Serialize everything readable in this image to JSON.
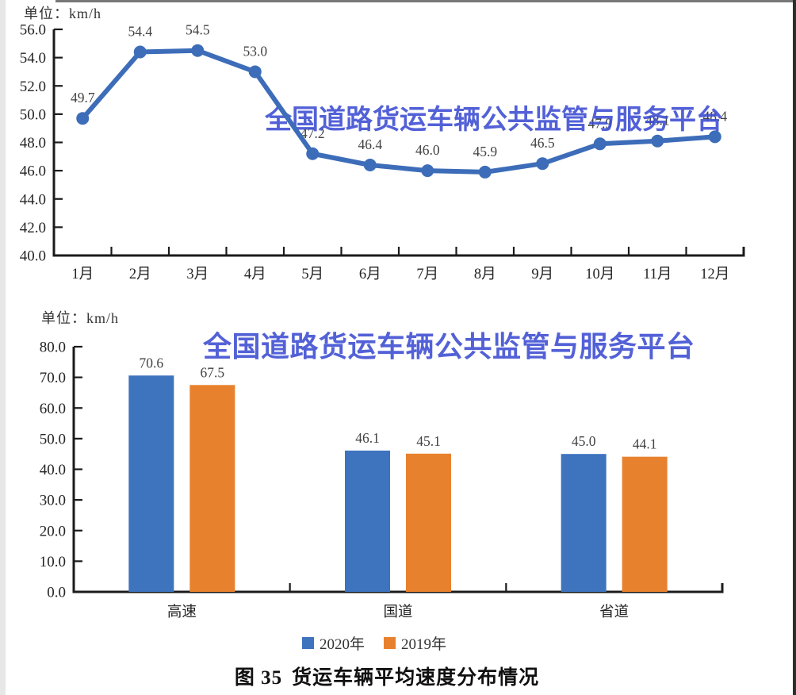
{
  "page": {
    "watermark": "全国道路货运车辆公共监管与服务平台",
    "caption_prefix": "图 35",
    "caption_title": "货运车辆平均速度分布情况"
  },
  "colors": {
    "axis": "#1b1b1b",
    "watermark_blue": "#3c4cd2",
    "line_blue": "#3d6db9",
    "bar_blue": "#3e73be",
    "bar_orange": "#e8812d"
  },
  "chart_data": [
    {
      "type": "line",
      "unit_label": "单位：km/h",
      "categories": [
        "1月",
        "2月",
        "3月",
        "4月",
        "5月",
        "6月",
        "7月",
        "8月",
        "9月",
        "10月",
        "11月",
        "12月"
      ],
      "series": [
        {
          "color": "#3d6db9",
          "values": [
            49.7,
            54.4,
            54.5,
            53.0,
            47.2,
            46.4,
            46.0,
            45.9,
            46.5,
            47.9,
            48.1,
            48.4
          ]
        }
      ],
      "ylim": [
        40.0,
        56.0
      ],
      "ytick_step": 2.0,
      "grid": false,
      "legend": "none",
      "data_labels": true
    },
    {
      "type": "bar",
      "unit_label": "单位：km/h",
      "categories": [
        "高速",
        "国道",
        "省道"
      ],
      "series": [
        {
          "name": "2020年",
          "color": "#3e73be",
          "values": [
            70.6,
            46.1,
            45.0
          ]
        },
        {
          "name": "2019年",
          "color": "#e8812d",
          "values": [
            67.5,
            45.1,
            44.1
          ]
        }
      ],
      "ylim": [
        0.0,
        80.0
      ],
      "ytick_step": 10.0,
      "grid": false,
      "legend_position": "bottom",
      "data_labels": true
    }
  ]
}
